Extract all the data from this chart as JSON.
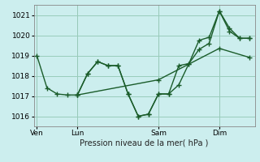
{
  "title": "",
  "xlabel": "Pression niveau de la mer( hPa )",
  "background_color": "#cceeee",
  "grid_color": "#99ccbb",
  "line_color": "#1a5c2a",
  "ylim": [
    1015.5,
    1021.5
  ],
  "yticks": [
    1016,
    1017,
    1018,
    1019,
    1020,
    1021
  ],
  "day_labels": [
    "Ven",
    "Lun",
    "Sam",
    "Dim"
  ],
  "day_positions": [
    0,
    4,
    12,
    18
  ],
  "vline_positions": [
    0,
    4,
    12,
    18
  ],
  "xlim": [
    -0.3,
    21.5
  ],
  "series": [
    {
      "x": [
        0,
        1,
        2,
        3,
        4,
        5,
        6,
        7,
        8,
        9,
        10,
        11,
        12,
        13,
        14,
        15,
        16,
        17,
        18,
        19,
        20,
        21
      ],
      "y": [
        1019.0,
        1017.4,
        1017.1,
        1017.05,
        1017.05,
        1018.1,
        1018.7,
        1018.5,
        1018.5,
        1017.1,
        1016.0,
        1016.1,
        1017.1,
        1017.1,
        1018.5,
        1018.6,
        1019.3,
        1019.6,
        1021.2,
        1020.35,
        1019.85,
        1019.85
      ]
    },
    {
      "x": [
        4,
        5,
        6,
        7,
        8,
        9,
        10,
        11,
        12,
        13,
        14,
        15,
        16,
        17,
        18,
        19,
        20,
        21
      ],
      "y": [
        1017.05,
        1018.1,
        1018.7,
        1018.5,
        1018.5,
        1017.1,
        1016.0,
        1016.1,
        1017.1,
        1017.1,
        1017.55,
        1018.6,
        1019.75,
        1019.9,
        1021.2,
        1020.2,
        1019.85,
        1019.85
      ]
    },
    {
      "x": [
        4,
        12,
        18,
        21
      ],
      "y": [
        1017.05,
        1017.8,
        1019.35,
        1018.9
      ]
    }
  ]
}
